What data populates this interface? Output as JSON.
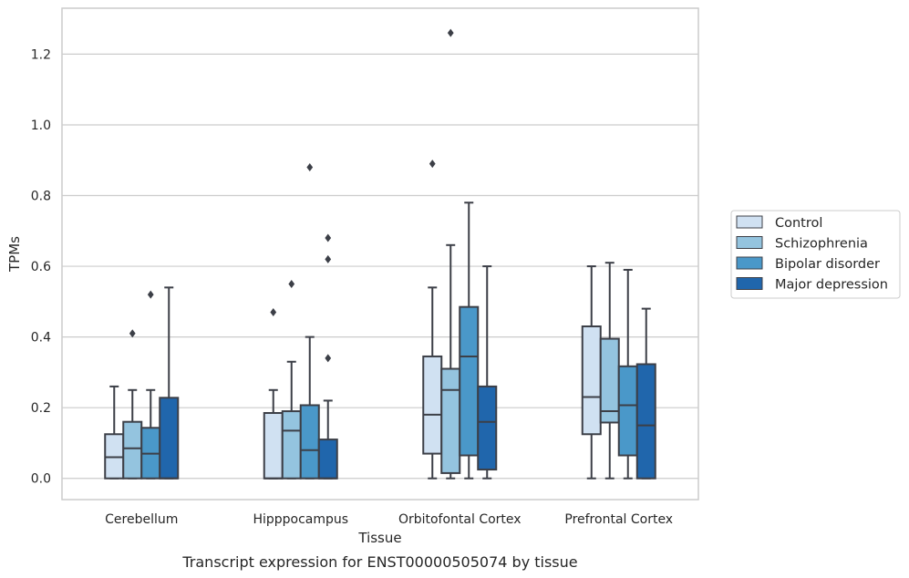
{
  "chart_data": {
    "type": "box",
    "caption": "Transcript expression for ENST00000505074 by tissue",
    "xlabel": "Tissue",
    "ylabel": "TPMs",
    "ylim": [
      -0.06,
      1.33
    ],
    "yticks": [
      0.0,
      0.2,
      0.4,
      0.6,
      0.8,
      1.0,
      1.2
    ],
    "ytick_labels": [
      "0.0",
      "0.2",
      "0.4",
      "0.6",
      "0.8",
      "1.0",
      "1.2"
    ],
    "grid": "horizontal",
    "legend_position": "right",
    "categories": [
      "Cerebellum",
      "Hipppocampus",
      "Orbitofontal Cortex",
      "Prefrontal Cortex"
    ],
    "series": [
      {
        "name": "Control",
        "color": "#d0e1f2",
        "boxes": [
          {
            "whisker_low": 0.0,
            "q1": 0.0,
            "median": 0.06,
            "q3": 0.125,
            "whisker_high": 0.26,
            "outliers": []
          },
          {
            "whisker_low": 0.0,
            "q1": 0.0,
            "median": 0.0,
            "q3": 0.185,
            "whisker_high": 0.25,
            "outliers": [
              0.47
            ]
          },
          {
            "whisker_low": 0.0,
            "q1": 0.07,
            "median": 0.18,
            "q3": 0.345,
            "whisker_high": 0.54,
            "outliers": [
              0.89
            ]
          },
          {
            "whisker_low": 0.0,
            "q1": 0.125,
            "median": 0.23,
            "q3": 0.43,
            "whisker_high": 0.6,
            "outliers": []
          }
        ]
      },
      {
        "name": "Schizophrenia",
        "color": "#94c4df",
        "boxes": [
          {
            "whisker_low": 0.0,
            "q1": 0.0,
            "median": 0.085,
            "q3": 0.16,
            "whisker_high": 0.25,
            "outliers": [
              0.41
            ]
          },
          {
            "whisker_low": 0.0,
            "q1": 0.0,
            "median": 0.135,
            "q3": 0.19,
            "whisker_high": 0.33,
            "outliers": [
              0.55
            ]
          },
          {
            "whisker_low": 0.0,
            "q1": 0.015,
            "median": 0.25,
            "q3": 0.31,
            "whisker_high": 0.66,
            "outliers": [
              1.26
            ]
          },
          {
            "whisker_low": 0.0,
            "q1": 0.158,
            "median": 0.19,
            "q3": 0.395,
            "whisker_high": 0.61,
            "outliers": []
          }
        ]
      },
      {
        "name": "Bipolar disorder",
        "color": "#4a98c9",
        "boxes": [
          {
            "whisker_low": 0.0,
            "q1": 0.0,
            "median": 0.07,
            "q3": 0.143,
            "whisker_high": 0.25,
            "outliers": [
              0.52
            ]
          },
          {
            "whisker_low": 0.0,
            "q1": 0.0,
            "median": 0.08,
            "q3": 0.207,
            "whisker_high": 0.4,
            "outliers": [
              0.88
            ]
          },
          {
            "whisker_low": 0.0,
            "q1": 0.065,
            "median": 0.345,
            "q3": 0.485,
            "whisker_high": 0.78,
            "outliers": []
          },
          {
            "whisker_low": 0.0,
            "q1": 0.065,
            "median": 0.207,
            "q3": 0.317,
            "whisker_high": 0.59,
            "outliers": []
          }
        ]
      },
      {
        "name": "Major depression",
        "color": "#2066ac",
        "boxes": [
          {
            "whisker_low": 0.0,
            "q1": 0.0,
            "median": 0.0,
            "q3": 0.228,
            "whisker_high": 0.54,
            "outliers": []
          },
          {
            "whisker_low": 0.0,
            "q1": 0.0,
            "median": 0.0,
            "q3": 0.11,
            "whisker_high": 0.22,
            "outliers": [
              0.34,
              0.62,
              0.68
            ]
          },
          {
            "whisker_low": 0.0,
            "q1": 0.025,
            "median": 0.16,
            "q3": 0.26,
            "whisker_high": 0.6,
            "outliers": []
          },
          {
            "whisker_low": 0.0,
            "q1": 0.0,
            "median": 0.15,
            "q3": 0.323,
            "whisker_high": 0.48,
            "outliers": []
          }
        ]
      }
    ]
  }
}
